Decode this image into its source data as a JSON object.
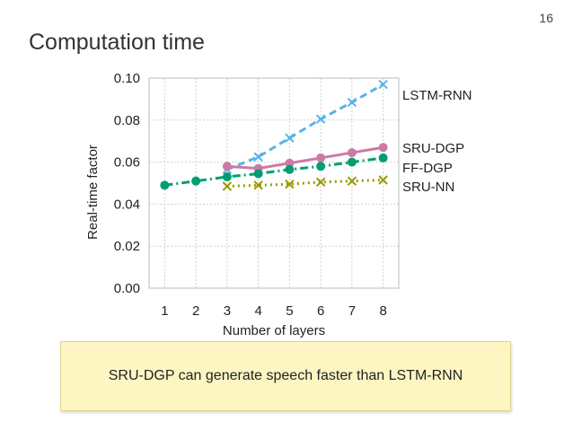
{
  "page_number": "16",
  "slide_title": "Computation time",
  "callout_text": "SRU-DGP can generate speech faster than LSTM-RNN",
  "chart_data": {
    "type": "line",
    "title": "",
    "xlabel": "Number of layers",
    "ylabel": "Real-time factor",
    "x": [
      1,
      2,
      3,
      4,
      5,
      6,
      7,
      8
    ],
    "xlim": [
      0.5,
      8.5
    ],
    "ylim": [
      0,
      0.1
    ],
    "yticks": [
      0,
      0.02,
      0.04,
      0.06,
      0.08,
      0.1
    ],
    "ytick_labels": [
      "0.00",
      "0.02",
      "0.04",
      "0.06",
      "0.08",
      "0.10"
    ],
    "grid": true,
    "legend": "right, labels beside line ends",
    "series": [
      {
        "name": "LSTM-RNN",
        "x": [
          3,
          4,
          5,
          6,
          7,
          8
        ],
        "values": [
          0.0565,
          0.0625,
          0.0715,
          0.0805,
          0.0885,
          0.097
        ],
        "color": "#56b4e9",
        "style": "dashed",
        "marker": "x"
      },
      {
        "name": "SRU-DGP",
        "x": [
          3,
          4,
          5,
          6,
          7,
          8
        ],
        "values": [
          0.058,
          0.057,
          0.0595,
          0.062,
          0.0645,
          0.067
        ],
        "color": "#cc79a7",
        "style": "solid",
        "marker": "circle"
      },
      {
        "name": "FF-DGP",
        "x": [
          1,
          2,
          3,
          4,
          5,
          6,
          7,
          8
        ],
        "values": [
          0.049,
          0.051,
          0.053,
          0.0545,
          0.0565,
          0.058,
          0.06,
          0.062
        ],
        "color": "#009e73",
        "style": "dashdot",
        "marker": "circle"
      },
      {
        "name": "SRU-NN",
        "x": [
          3,
          4,
          5,
          6,
          7,
          8
        ],
        "values": [
          0.0485,
          0.049,
          0.0495,
          0.0505,
          0.051,
          0.0515
        ],
        "color": "#999900",
        "style": "dotted",
        "marker": "x"
      }
    ]
  }
}
